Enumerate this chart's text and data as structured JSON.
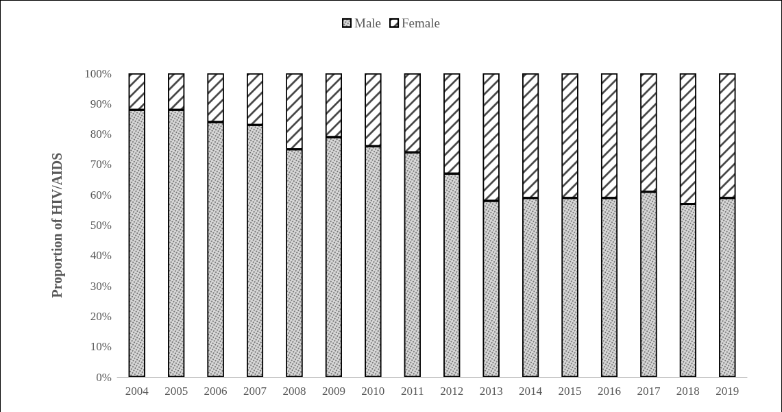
{
  "chart_data": {
    "type": "bar",
    "stacked": true,
    "ylabel": "Proportion of HIV/AIDS",
    "categories": [
      "2004",
      "2005",
      "2006",
      "2007",
      "2008",
      "2009",
      "2010",
      "2011",
      "2012",
      "2013",
      "2014",
      "2015",
      "2016",
      "2017",
      "2018",
      "2019"
    ],
    "series": [
      {
        "name": "Male",
        "color": "#d9d9d9",
        "values": [
          88,
          88,
          84,
          83,
          75,
          79,
          76,
          74,
          67,
          58,
          59,
          59,
          59,
          61,
          57,
          59
        ]
      },
      {
        "name": "Female",
        "color": "#ffffff",
        "values": [
          12,
          12,
          16,
          17,
          25,
          21,
          24,
          26,
          33,
          42,
          41,
          41,
          41,
          39,
          43,
          41
        ]
      }
    ],
    "ylim": [
      0,
      100
    ],
    "yticks": [
      {
        "value": 0,
        "label": "0%"
      },
      {
        "value": 10,
        "label": "10%"
      },
      {
        "value": 20,
        "label": "20%"
      },
      {
        "value": 30,
        "label": "30%"
      },
      {
        "value": 40,
        "label": "40%"
      },
      {
        "value": 50,
        "label": "50%"
      },
      {
        "value": 60,
        "label": "60%"
      },
      {
        "value": 70,
        "label": "70%"
      },
      {
        "value": 80,
        "label": "80%"
      },
      {
        "value": 90,
        "label": "90%"
      },
      {
        "value": 100,
        "label": "100%"
      }
    ],
    "grid": false,
    "legend": "top"
  }
}
